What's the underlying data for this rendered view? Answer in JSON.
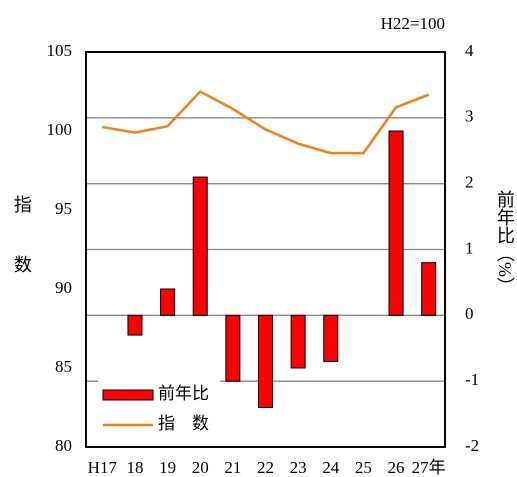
{
  "chart_data": {
    "type": "bar-line",
    "note": "H22=100",
    "y_label": "指数",
    "y2_label": "前年比（%）",
    "categories": [
      "H17",
      "18",
      "19",
      "20",
      "21",
      "22",
      "23",
      "24",
      "25",
      "26",
      "27年"
    ],
    "series": [
      {
        "name": "前年比",
        "type": "bar",
        "axis": "y2",
        "color": "#ff0000",
        "values": [
          null,
          -0.3,
          0.4,
          2.1,
          -1.0,
          -1.4,
          -0.8,
          -0.7,
          0,
          2.8,
          0.8
        ]
      },
      {
        "name": "指　数",
        "type": "line",
        "color": "#f07f1e",
        "values": [
          100.25,
          99.9,
          100.3,
          102.5,
          101.4,
          100.1,
          99.2,
          98.6,
          98.6,
          101.5,
          102.3
        ]
      }
    ],
    "ylim": [
      80,
      105
    ],
    "yticks": [
      80,
      85,
      90,
      95,
      100,
      105
    ],
    "y2lim": [
      -2,
      4
    ],
    "y2ticks": [
      -2,
      -1,
      0,
      1,
      2,
      3,
      4
    ],
    "grid": true
  }
}
